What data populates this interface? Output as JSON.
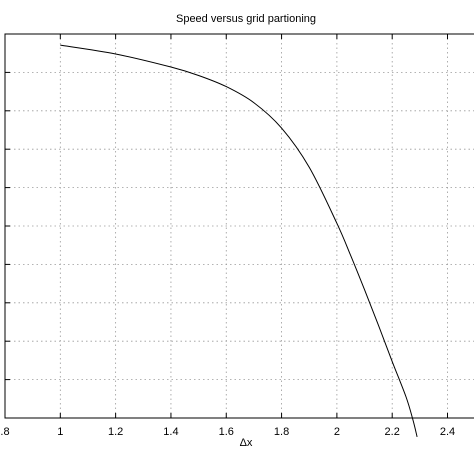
{
  "chart_data": {
    "type": "line",
    "title": "Speed versus grid partioning",
    "xlabel": "Δx",
    "ylabel": "",
    "xlim": [
      0.8,
      2.55
    ],
    "x_ticks": [
      0.8,
      1.0,
      1.2,
      1.4,
      1.6,
      1.8,
      2.0,
      2.2,
      2.4
    ],
    "x_tick_labels": [
      ".8",
      "1",
      "1.2",
      "1.4",
      "1.6",
      "1.8",
      "2",
      "2.2",
      "2.4"
    ],
    "ylim": [
      0,
      10
    ],
    "y_gridlines": [
      1,
      2,
      3,
      4,
      5,
      6,
      7,
      8,
      9
    ],
    "grid": true,
    "series": [
      {
        "x": [
          1.0,
          1.2,
          1.4,
          1.5,
          1.6,
          1.7,
          1.8,
          1.9,
          2.0,
          2.05,
          2.1,
          2.15,
          2.2,
          2.25,
          2.275,
          2.29
        ],
        "y": [
          9.71,
          9.48,
          9.14,
          8.92,
          8.63,
          8.21,
          7.55,
          6.53,
          5.07,
          4.23,
          3.34,
          2.42,
          1.47,
          0.55,
          -0.05,
          -0.49
        ]
      }
    ],
    "line_color": "#000000",
    "grid_color": "#9a9a9a"
  }
}
